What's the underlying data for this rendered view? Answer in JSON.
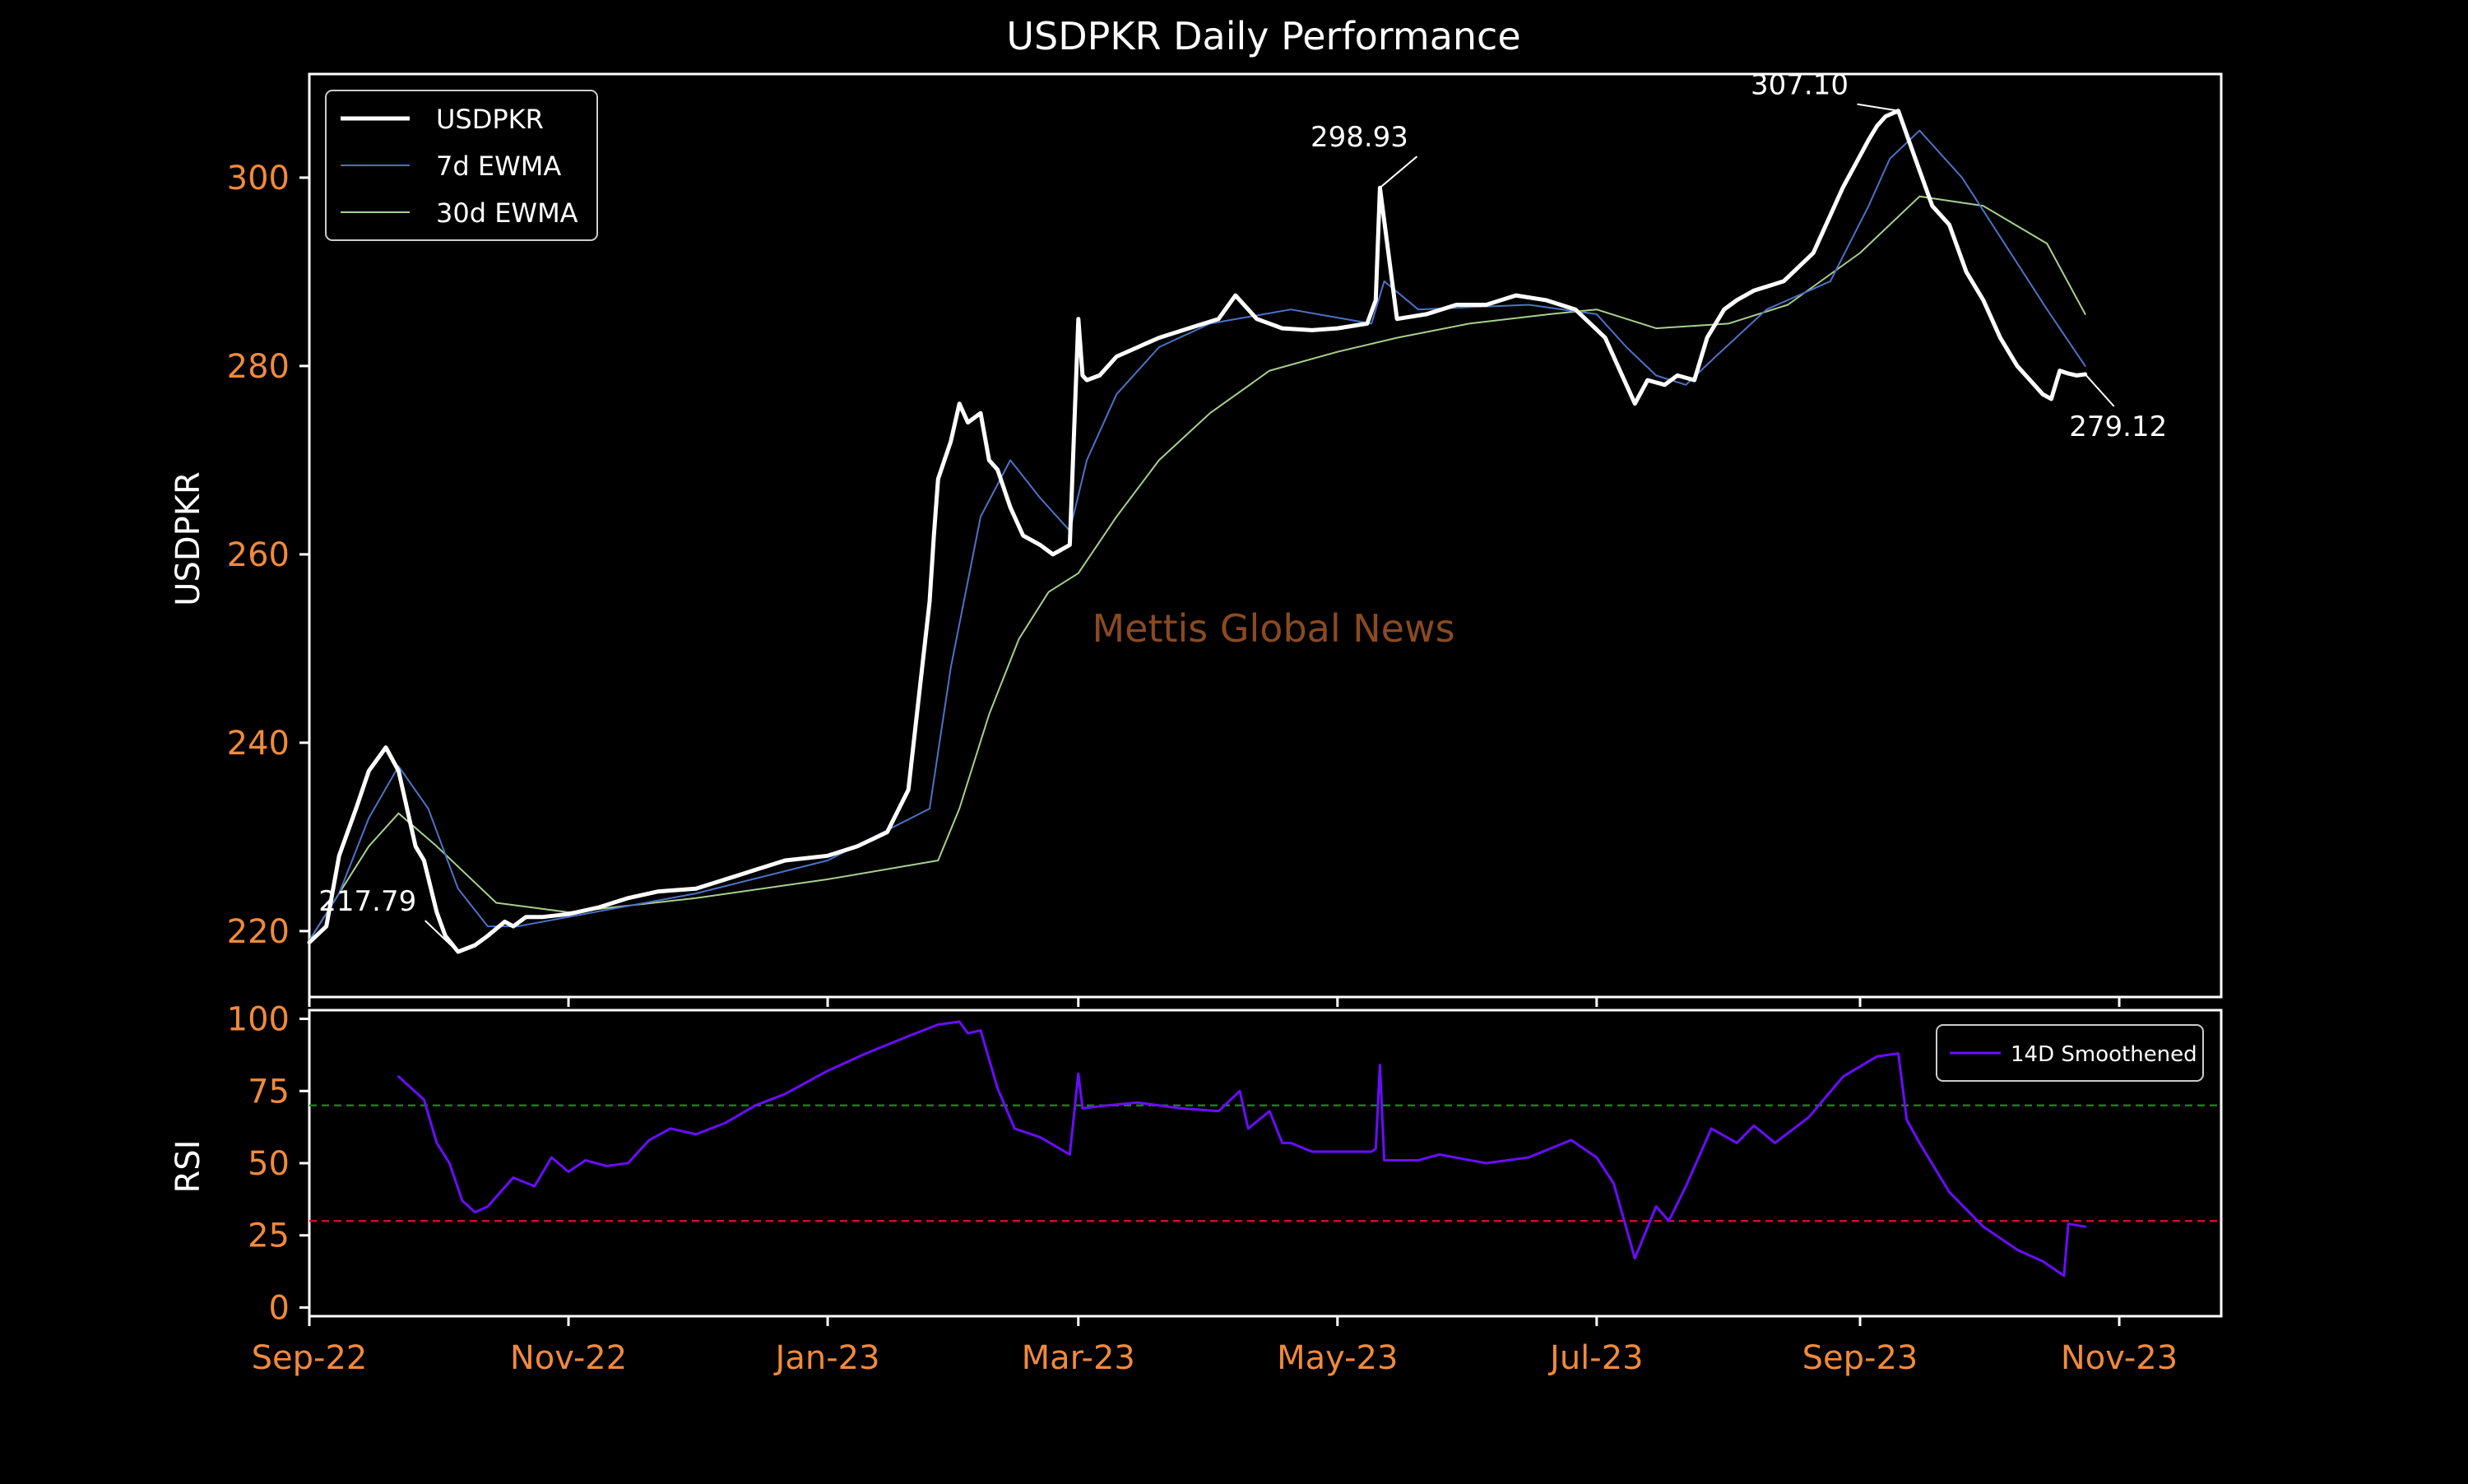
{
  "chart_data": [
    {
      "type": "line",
      "title": "USDPKR Daily Performance",
      "ylabel": "USDPKR",
      "ylim": [
        213,
        311
      ],
      "yticks": [
        220,
        240,
        260,
        280,
        300
      ],
      "xlim": [
        "2022-09-01",
        "2023-11-25"
      ],
      "xticks": [
        {
          "date": "2022-09-01",
          "label": "Sep-22"
        },
        {
          "date": "2022-11-01",
          "label": "Nov-22"
        },
        {
          "date": "2023-01-01",
          "label": "Jan-23"
        },
        {
          "date": "2023-03-01",
          "label": "Mar-23"
        },
        {
          "date": "2023-05-01",
          "label": "May-23"
        },
        {
          "date": "2023-07-01",
          "label": "Jul-23"
        },
        {
          "date": "2023-09-01",
          "label": "Sep-23"
        },
        {
          "date": "2023-11-01",
          "label": "Nov-23"
        }
      ],
      "watermark": "Mettis Global News",
      "legend_position": "upper-left",
      "colors": {
        "price": "#ffffff",
        "ewma7": "#4c72c8",
        "ewma30": "#a8d08d",
        "tick": "#f08a3c",
        "text": "#ffffff",
        "watermark": "#8a4a22"
      },
      "series": [
        {
          "name": "USDPKR",
          "x": [
            "2022-09-01",
            "2022-09-05",
            "2022-09-08",
            "2022-09-12",
            "2022-09-15",
            "2022-09-19",
            "2022-09-22",
            "2022-09-26",
            "2022-09-28",
            "2022-10-01",
            "2022-10-03",
            "2022-10-06",
            "2022-10-10",
            "2022-10-13",
            "2022-10-17",
            "2022-10-19",
            "2022-10-22",
            "2022-10-26",
            "2022-11-01",
            "2022-11-08",
            "2022-11-15",
            "2022-11-22",
            "2022-12-01",
            "2022-12-08",
            "2022-12-15",
            "2022-12-22",
            "2023-01-01",
            "2023-01-08",
            "2023-01-15",
            "2023-01-20",
            "2023-01-25",
            "2023-01-26",
            "2023-01-27",
            "2023-01-30",
            "2023-02-01",
            "2023-02-03",
            "2023-02-06",
            "2023-02-08",
            "2023-02-10",
            "2023-02-13",
            "2023-02-16",
            "2023-02-20",
            "2023-02-23",
            "2023-02-27",
            "2023-03-01",
            "2023-03-02",
            "2023-03-03",
            "2023-03-06",
            "2023-03-10",
            "2023-03-15",
            "2023-03-20",
            "2023-03-27",
            "2023-04-03",
            "2023-04-07",
            "2023-04-12",
            "2023-04-18",
            "2023-04-25",
            "2023-05-01",
            "2023-05-08",
            "2023-05-10",
            "2023-05-11",
            "2023-05-15",
            "2023-05-22",
            "2023-05-29",
            "2023-06-05",
            "2023-06-12",
            "2023-06-19",
            "2023-06-26",
            "2023-07-03",
            "2023-07-06",
            "2023-07-10",
            "2023-07-13",
            "2023-07-17",
            "2023-07-20",
            "2023-07-24",
            "2023-07-27",
            "2023-07-31",
            "2023-08-03",
            "2023-08-07",
            "2023-08-14",
            "2023-08-21",
            "2023-08-24",
            "2023-08-28",
            "2023-08-31",
            "2023-09-03",
            "2023-09-05",
            "2023-09-07",
            "2023-09-10",
            "2023-09-14",
            "2023-09-18",
            "2023-09-22",
            "2023-09-26",
            "2023-09-30",
            "2023-10-04",
            "2023-10-08",
            "2023-10-12",
            "2023-10-14",
            "2023-10-16",
            "2023-10-18",
            "2023-10-20",
            "2023-10-22",
            "2023-10-24"
          ],
          "values": [
            218.8,
            220.5,
            228.0,
            233.0,
            237.0,
            239.5,
            237.0,
            229.0,
            227.5,
            222.0,
            219.5,
            217.8,
            218.5,
            219.5,
            221.0,
            220.5,
            221.5,
            221.5,
            221.8,
            222.5,
            223.5,
            224.2,
            224.5,
            225.5,
            226.5,
            227.5,
            228.0,
            229.0,
            230.5,
            235.0,
            255.0,
            262.0,
            268.0,
            272.0,
            276.0,
            274.0,
            275.0,
            270.0,
            269.0,
            265.0,
            262.0,
            261.0,
            260.0,
            261.0,
            285.0,
            279.0,
            278.5,
            279.0,
            281.0,
            282.0,
            283.0,
            284.0,
            285.0,
            287.5,
            285.0,
            284.0,
            283.8,
            284.0,
            284.5,
            287.0,
            298.93,
            285.0,
            285.5,
            286.5,
            286.5,
            287.5,
            287.0,
            286.0,
            283.0,
            280.0,
            276.0,
            278.5,
            278.0,
            279.0,
            278.5,
            283.0,
            286.0,
            287.0,
            288.0,
            289.0,
            292.0,
            295.0,
            299.0,
            301.5,
            304.0,
            305.5,
            306.5,
            307.1,
            302.0,
            297.0,
            295.0,
            290.0,
            287.0,
            283.0,
            280.0,
            278.0,
            277.0,
            276.5,
            279.5,
            279.2,
            279.0,
            279.12
          ]
        },
        {
          "name": "7d EWMA",
          "x": [
            "2022-09-01",
            "2022-09-08",
            "2022-09-15",
            "2022-09-22",
            "2022-09-29",
            "2022-10-06",
            "2022-10-13",
            "2022-10-20",
            "2022-11-01",
            "2022-12-01",
            "2023-01-01",
            "2023-01-25",
            "2023-01-30",
            "2023-02-06",
            "2023-02-13",
            "2023-02-20",
            "2023-02-27",
            "2023-03-03",
            "2023-03-10",
            "2023-03-20",
            "2023-04-01",
            "2023-04-20",
            "2023-05-09",
            "2023-05-12",
            "2023-05-20",
            "2023-06-15",
            "2023-07-01",
            "2023-07-08",
            "2023-07-15",
            "2023-07-22",
            "2023-07-29",
            "2023-08-10",
            "2023-08-25",
            "2023-09-03",
            "2023-09-08",
            "2023-09-15",
            "2023-09-25",
            "2023-10-05",
            "2023-10-15",
            "2023-10-24"
          ],
          "values": [
            219.0,
            224.0,
            232.0,
            237.5,
            233.0,
            224.5,
            220.5,
            220.5,
            221.5,
            224.0,
            227.5,
            233.0,
            248.0,
            264.0,
            270.0,
            266.0,
            262.5,
            270.0,
            277.0,
            282.0,
            284.5,
            286.0,
            284.5,
            289.0,
            286.0,
            286.5,
            285.5,
            282.0,
            279.0,
            278.0,
            281.0,
            286.0,
            289.0,
            297.0,
            302.0,
            305.0,
            300.0,
            293.0,
            286.0,
            280.0
          ]
        },
        {
          "name": "30d EWMA",
          "x": [
            "2022-09-01",
            "2022-09-15",
            "2022-09-22",
            "2022-10-01",
            "2022-10-15",
            "2022-11-01",
            "2022-12-01",
            "2023-01-01",
            "2023-01-27",
            "2023-02-01",
            "2023-02-08",
            "2023-02-15",
            "2023-02-22",
            "2023-03-01",
            "2023-03-10",
            "2023-03-20",
            "2023-04-01",
            "2023-04-15",
            "2023-05-01",
            "2023-05-15",
            "2023-06-01",
            "2023-06-20",
            "2023-07-01",
            "2023-07-15",
            "2023-08-01",
            "2023-08-15",
            "2023-09-01",
            "2023-09-15",
            "2023-09-30",
            "2023-10-15",
            "2023-10-24"
          ],
          "values": [
            219.0,
            229.0,
            232.5,
            229.0,
            223.0,
            222.0,
            223.5,
            225.5,
            227.5,
            233.0,
            243.0,
            251.0,
            256.0,
            258.0,
            264.0,
            270.0,
            275.0,
            279.5,
            281.5,
            283.0,
            284.5,
            285.5,
            286.0,
            284.0,
            284.5,
            286.5,
            292.0,
            298.0,
            297.0,
            293.0,
            285.5
          ]
        }
      ],
      "annotations": [
        {
          "text": "217.79",
          "date": "2022-10-06",
          "value": 217.79
        },
        {
          "text": "298.93",
          "date": "2023-05-11",
          "value": 298.93
        },
        {
          "text": "307.10",
          "date": "2023-09-10",
          "value": 307.1
        },
        {
          "text": "279.12",
          "date": "2023-10-24",
          "value": 279.12
        }
      ]
    },
    {
      "type": "line",
      "ylabel": "RSI",
      "ylim": [
        -3,
        103
      ],
      "yticks": [
        0,
        25,
        50,
        75,
        100
      ],
      "xlim": [
        "2022-09-01",
        "2023-11-25"
      ],
      "legend_position": "upper-right",
      "reference_lines": [
        {
          "value": 70,
          "color": "#1f7a1f",
          "style": "dashed"
        },
        {
          "value": 30,
          "color": "#c8102e",
          "style": "dashed"
        }
      ],
      "colors": {
        "rsi": "#6a0dff"
      },
      "series": [
        {
          "name": "14D Smoothened",
          "x": [
            "2022-09-22",
            "2022-09-28",
            "2022-10-01",
            "2022-10-04",
            "2022-10-07",
            "2022-10-10",
            "2022-10-13",
            "2022-10-19",
            "2022-10-24",
            "2022-10-28",
            "2022-11-01",
            "2022-11-05",
            "2022-11-10",
            "2022-11-15",
            "2022-11-20",
            "2022-11-25",
            "2022-12-01",
            "2022-12-08",
            "2022-12-15",
            "2022-12-22",
            "2023-01-01",
            "2023-01-10",
            "2023-01-20",
            "2023-01-27",
            "2023-02-01",
            "2023-02-03",
            "2023-02-06",
            "2023-02-10",
            "2023-02-14",
            "2023-02-20",
            "2023-02-27",
            "2023-03-01",
            "2023-03-02",
            "2023-03-08",
            "2023-03-15",
            "2023-03-25",
            "2023-04-03",
            "2023-04-08",
            "2023-04-10",
            "2023-04-15",
            "2023-04-18",
            "2023-04-20",
            "2023-04-25",
            "2023-05-09",
            "2023-05-10",
            "2023-05-11",
            "2023-05-12",
            "2023-05-20",
            "2023-05-25",
            "2023-06-05",
            "2023-06-15",
            "2023-06-25",
            "2023-07-01",
            "2023-07-05",
            "2023-07-10",
            "2023-07-15",
            "2023-07-18",
            "2023-07-22",
            "2023-07-28",
            "2023-08-03",
            "2023-08-07",
            "2023-08-12",
            "2023-08-20",
            "2023-08-28",
            "2023-09-05",
            "2023-09-10",
            "2023-09-12",
            "2023-09-15",
            "2023-09-22",
            "2023-09-30",
            "2023-10-08",
            "2023-10-14",
            "2023-10-18",
            "2023-10-19",
            "2023-10-20",
            "2023-10-24"
          ],
          "values": [
            80,
            72,
            57,
            50,
            37,
            33,
            35,
            45,
            42,
            52,
            47,
            51,
            49,
            50,
            58,
            62,
            60,
            64,
            70,
            74,
            82,
            88,
            94,
            98,
            99,
            95,
            96,
            76,
            62,
            59,
            53,
            81,
            69,
            70,
            71,
            69,
            68,
            75,
            62,
            68,
            57,
            57,
            54,
            54,
            55,
            84,
            51,
            51,
            53,
            50,
            52,
            58,
            52,
            43,
            17,
            35,
            30,
            42,
            62,
            57,
            63,
            57,
            66,
            80,
            87,
            88,
            65,
            57,
            40,
            28,
            20,
            16,
            12,
            11,
            29,
            28
          ]
        }
      ]
    }
  ]
}
